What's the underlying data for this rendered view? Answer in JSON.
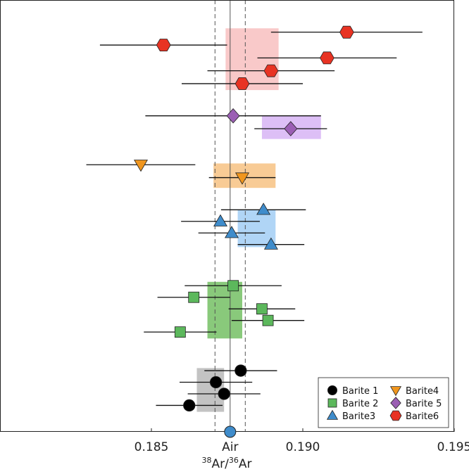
{
  "chart_data": {
    "type": "scatter",
    "subtype": "error-bar-dot-plot",
    "title": "",
    "xlabel": {
      "sup1": "38",
      "base1": "Ar/",
      "sup2": "36",
      "base2": "Ar"
    },
    "ylabel": "",
    "xlim": [
      0.18,
      0.195
    ],
    "ticks": [
      {
        "value": 0.185,
        "label": "0.185"
      },
      {
        "value": 0.1876,
        "label": "Air"
      },
      {
        "value": 0.19,
        "label": "0.190"
      },
      {
        "value": 0.195,
        "label": "0.195"
      }
    ],
    "air_reference": {
      "value": 0.1876,
      "uncertainty_lines": [
        0.1871,
        0.1881
      ]
    },
    "legend_position": "bottom-right",
    "series": [
      {
        "name": "Barite 1",
        "marker": "circle",
        "color": "#000000",
        "band": {
          "low": 0.1865,
          "high": 0.1874,
          "color": "#bdbdbd"
        },
        "points": [
          {
            "value": 0.18795,
            "err": 0.0012,
            "row": 28.8
          },
          {
            "value": 0.18713,
            "err": 0.0012,
            "row": 29.7
          },
          {
            "value": 0.1874,
            "err": 0.0012,
            "row": 30.6
          },
          {
            "value": 0.18625,
            "err": 0.0011,
            "row": 31.5
          }
        ]
      },
      {
        "name": "Barite 2",
        "marker": "square",
        "color": "#5cb85c",
        "band": {
          "low": 0.18685,
          "high": 0.188,
          "color": "#7cc36d"
        },
        "points": [
          {
            "value": 0.1877,
            "err": 0.0016,
            "row": 22.2
          },
          {
            "value": 0.1864,
            "err": 0.0012,
            "row": 23.1
          },
          {
            "value": 0.18865,
            "err": 0.0011,
            "row": 24.0
          },
          {
            "value": 0.18885,
            "err": 0.0012,
            "row": 24.9
          },
          {
            "value": 0.18595,
            "err": 0.0012,
            "row": 25.8
          }
        ]
      },
      {
        "name": "Barite3",
        "marker": "triangle-up",
        "color": "#3f8ccb",
        "band": {
          "low": 0.18785,
          "high": 0.1891,
          "color": "#a7d0f5"
        },
        "points": [
          {
            "value": 0.1887,
            "err": 0.0014,
            "row": 16.3
          },
          {
            "value": 0.18728,
            "err": 0.0013,
            "row": 17.2
          },
          {
            "value": 0.18765,
            "err": 0.0011,
            "row": 18.1
          },
          {
            "value": 0.18895,
            "err": 0.0011,
            "row": 19.0
          }
        ]
      },
      {
        "name": "Barite4",
        "marker": "triangle-down",
        "color": "#f0961e",
        "band": {
          "low": 0.18705,
          "high": 0.1891,
          "color": "#f7c58a"
        },
        "points": [
          {
            "value": 0.18465,
            "err": 0.0018,
            "row": 12.8
          },
          {
            "value": 0.188,
            "err": 0.0011,
            "row": 13.8
          }
        ]
      },
      {
        "name": "Barite 5",
        "marker": "diamond",
        "color": "#9b5fb4",
        "band": {
          "low": 0.18865,
          "high": 0.1906,
          "color": "#d9b8f5"
        },
        "points": [
          {
            "value": 0.1877,
            "err": 0.0029,
            "row": 9.0
          },
          {
            "value": 0.1896,
            "err": 0.0012,
            "row": 10.0
          }
        ]
      },
      {
        "name": "Barite6",
        "marker": "hexagon",
        "color": "#e83323",
        "band": {
          "low": 0.18745,
          "high": 0.1892,
          "color": "#f8c3c3"
        },
        "points": [
          {
            "value": 0.19145,
            "err": 0.0025,
            "row": 2.5
          },
          {
            "value": 0.1854,
            "err": 0.0021,
            "row": 3.5
          },
          {
            "value": 0.1908,
            "err": 0.0023,
            "row": 4.5
          },
          {
            "value": 0.18895,
            "err": 0.0021,
            "row": 5.5
          },
          {
            "value": 0.188,
            "err": 0.002,
            "row": 6.5
          }
        ]
      }
    ],
    "band_rows": [
      [
        2.2,
        7.0
      ],
      [
        9.0,
        10.8
      ],
      [
        12.7,
        14.6
      ],
      [
        16.3,
        19.2
      ],
      [
        21.9,
        26.3
      ],
      [
        28.6,
        32.0
      ]
    ],
    "legend_entries": [
      "Barite 1",
      "Barite4",
      "Barite 2",
      "Barite 5",
      "Barite3",
      "Barite6"
    ]
  }
}
